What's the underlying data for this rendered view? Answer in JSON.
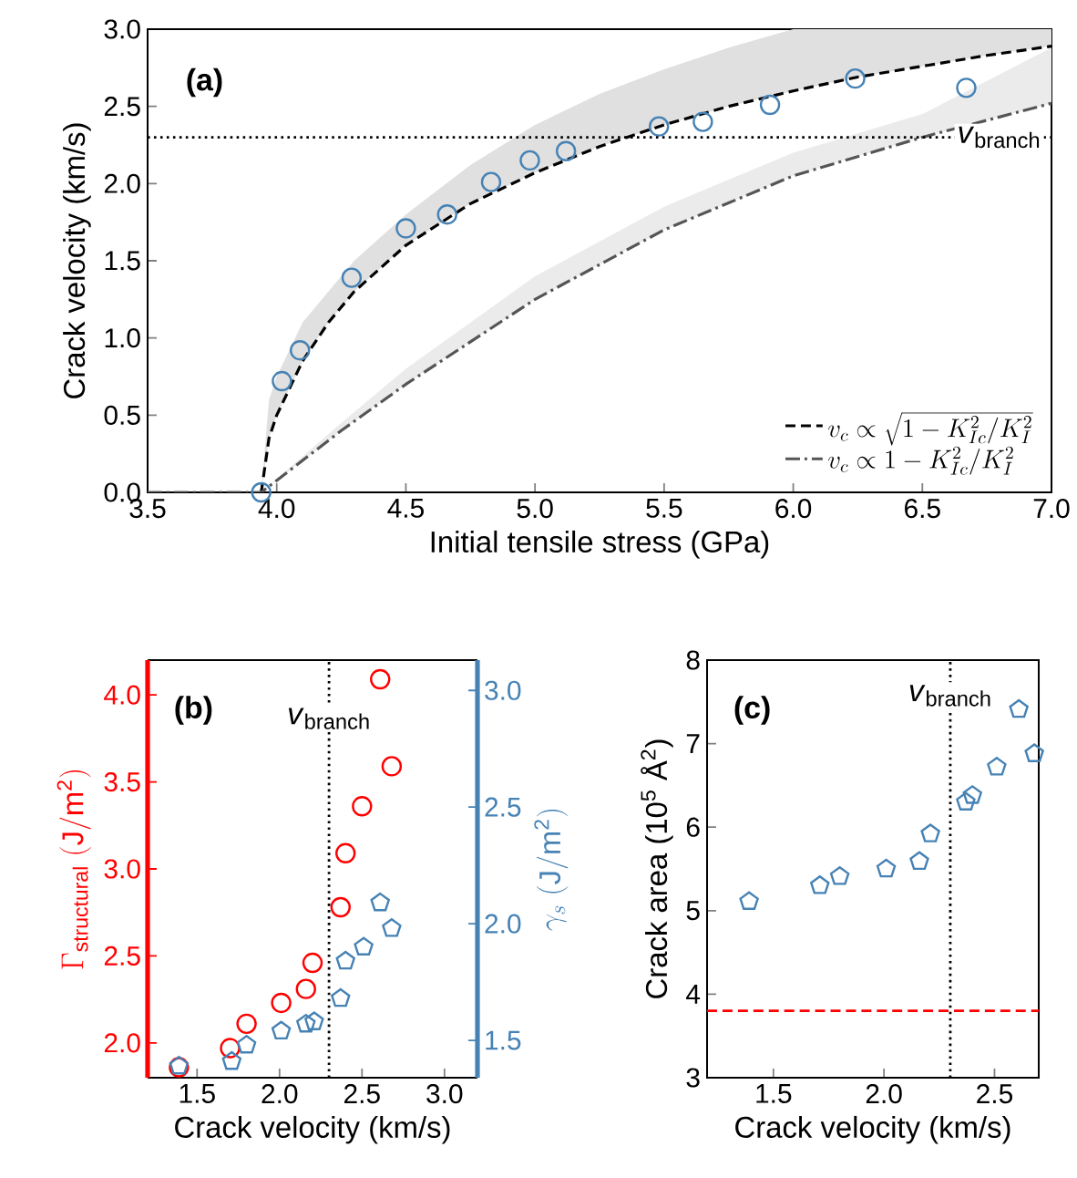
{
  "chart_data": [
    {
      "type": "scatter",
      "annotations": [
        "(a)"
      ],
      "xlabel": "Initial tensile stress (GPa)",
      "ylabel": "Crack velocity (km/s)",
      "xlim": [
        3.5,
        7.0
      ],
      "ylim": [
        0,
        3.0
      ],
      "xticks": [
        3.5,
        {
          "value": 4,
          "label": "4.0"
        },
        4.5,
        {
          "value": 5,
          "label": "5.0"
        },
        5.5,
        {
          "value": 6,
          "label": "6.0"
        },
        6.5,
        {
          "value": 7,
          "label": "7.0"
        }
      ],
      "yticks": [
        {
          "value": 0,
          "label": "0.0"
        },
        0.5,
        {
          "value": 1,
          "label": "1.0"
        },
        1.5,
        {
          "value": 2,
          "label": "2.0"
        },
        2.5,
        {
          "value": 3,
          "label": "3.0"
        }
      ],
      "legend": "bottom right",
      "series": [
        {
          "type": "line",
          "name": "v_c \\propto \\sqrt{1-K_{Ic}^{2}/K_{I}^{2}}",
          "color": "#000000",
          "line_style": "dashed",
          "x": [
            3.94,
            3.97,
            4.0,
            4.1,
            4.2,
            4.3,
            4.5,
            4.75,
            5.0,
            5.25,
            5.5,
            5.75,
            6.0,
            6.25,
            6.5,
            6.75,
            7.0
          ],
          "values": [
            0,
            0.35,
            0.5,
            0.85,
            1.1,
            1.3,
            1.6,
            1.87,
            2.07,
            2.24,
            2.38,
            2.5,
            2.6,
            2.69,
            2.76,
            2.83,
            2.89
          ],
          "lower": [
            0,
            0.35,
            0.5,
            0.85,
            1.1,
            1.3,
            1.6,
            1.87,
            2.07,
            2.24,
            2.38,
            2.5,
            2.6,
            2.69,
            2.76,
            2.83,
            2.89
          ],
          "upper": [
            0,
            0.6,
            0.75,
            1.1,
            1.3,
            1.5,
            1.8,
            2.12,
            2.38,
            2.58,
            2.74,
            2.88,
            3.0,
            3.0,
            3.0,
            3.0,
            3.0
          ]
        },
        {
          "type": "line",
          "name": "v_c \\propto 1-K_{Ic}^{2}/K_{I}^{2}",
          "color": "#555555",
          "line_style": "dashdot",
          "x": [
            3.5,
            3.94,
            4.25,
            4.5,
            5.0,
            5.5,
            6.0,
            6.5,
            7.0
          ],
          "values": [
            0,
            0,
            0.4,
            0.7,
            1.25,
            1.7,
            2.05,
            2.3,
            2.52
          ],
          "lower": [
            0,
            0,
            0.4,
            0.7,
            1.25,
            1.7,
            2.05,
            2.3,
            2.52
          ],
          "upper": [
            0,
            0,
            0.45,
            0.8,
            1.4,
            1.85,
            2.2,
            2.45,
            2.88
          ]
        },
        {
          "marker": "circle",
          "color": "#4682b4",
          "x": [
            3.94,
            4.02,
            4.09,
            4.29,
            4.5,
            4.66,
            4.83,
            4.98,
            5.12,
            5.48,
            5.65,
            5.91,
            6.24,
            6.67
          ],
          "values": [
            0,
            0.72,
            0.92,
            1.39,
            1.71,
            1.8,
            2.01,
            2.15,
            2.21,
            2.37,
            2.4,
            2.51,
            2.68,
            2.62
          ]
        }
      ],
      "ref_lines": [
        {
          "axis": "y",
          "value": 2.3,
          "label": "*v*$_{branch}$",
          "line_style": "dotted",
          "color": "#000000"
        }
      ]
    },
    {
      "type": "scatter",
      "annotations": [
        "(b)"
      ],
      "xlabel": "Crack velocity (km/s)",
      "ylabel": "\\Gamma_{\\mathrm{structural}}\\ \\mathrm{(J/m^{2})}",
      "y2label": "\\gamma_{s}\\ \\mathrm{(J/m^{2})}",
      "xlim": [
        1.2,
        3.2
      ],
      "ylim": [
        1.8,
        4.2
      ],
      "y2lim": [
        1.34,
        3.13
      ],
      "xticks": [
        1.5,
        {
          "value": 2,
          "label": "2.0"
        },
        2.5,
        {
          "value": 3,
          "label": "3.0"
        }
      ],
      "yticks": [
        {
          "value": 2,
          "label": "2.0"
        },
        2.5,
        {
          "value": 3,
          "label": "3.0"
        },
        3.5,
        {
          "value": 4,
          "label": "4.0"
        }
      ],
      "y2ticks": [
        1.5,
        {
          "value": 2,
          "label": "2.0"
        },
        2.5,
        {
          "value": 3,
          "label": "3.0"
        }
      ],
      "series": [
        {
          "marker": "circle",
          "color": "#ff0000",
          "x": [
            1.39,
            1.7,
            1.8,
            2.01,
            2.16,
            2.2,
            2.37,
            2.4,
            2.5,
            2.61,
            2.68
          ],
          "values": [
            1.86,
            1.97,
            2.11,
            2.23,
            2.31,
            2.46,
            2.78,
            3.09,
            3.36,
            4.09,
            3.59
          ]
        },
        {
          "color": "#4682b4",
          "axis": "y2",
          "x": [
            1.39,
            1.71,
            1.8,
            2.01,
            2.16,
            2.21,
            2.37,
            2.4,
            2.51,
            2.61,
            2.68
          ],
          "values": [
            1.39,
            1.41,
            1.48,
            1.54,
            1.57,
            1.58,
            1.68,
            1.84,
            1.9,
            2.09,
            1.98
          ]
        }
      ],
      "ref_lines": [
        {
          "axis": "x",
          "value": 2.3,
          "label": "*v*$_{branch}$",
          "line_style": "dotted",
          "color": "#000000"
        }
      ]
    },
    {
      "type": "scatter",
      "annotations": [
        "(c)"
      ],
      "xlabel": "Crack velocity (km/s)",
      "ylabel": "Crack area (10$^{5}$ Å$^{2}$)",
      "xlim": [
        1.2,
        2.7
      ],
      "ylim": [
        3,
        8
      ],
      "xticks": [
        1.5,
        {
          "value": 2,
          "label": "2.0"
        },
        2.5
      ],
      "yticks": [
        3,
        4,
        5,
        6,
        7,
        8
      ],
      "series": [
        {
          "color": "#4682b4",
          "x": [
            1.39,
            1.71,
            1.8,
            2.01,
            2.16,
            2.21,
            2.37,
            2.4,
            2.51,
            2.61,
            2.68
          ],
          "values": [
            5.11,
            5.3,
            5.41,
            5.5,
            5.59,
            5.92,
            6.3,
            6.38,
            6.72,
            7.41,
            6.88
          ]
        }
      ],
      "ref_lines": [
        {
          "axis": "x",
          "value": 2.3,
          "label": "*v*$_{branch}$",
          "line_style": "dotted",
          "color": "#000000"
        },
        {
          "axis": "y",
          "value": 3.8,
          "line_style": "dashed",
          "color": "#ff0000"
        }
      ]
    }
  ]
}
